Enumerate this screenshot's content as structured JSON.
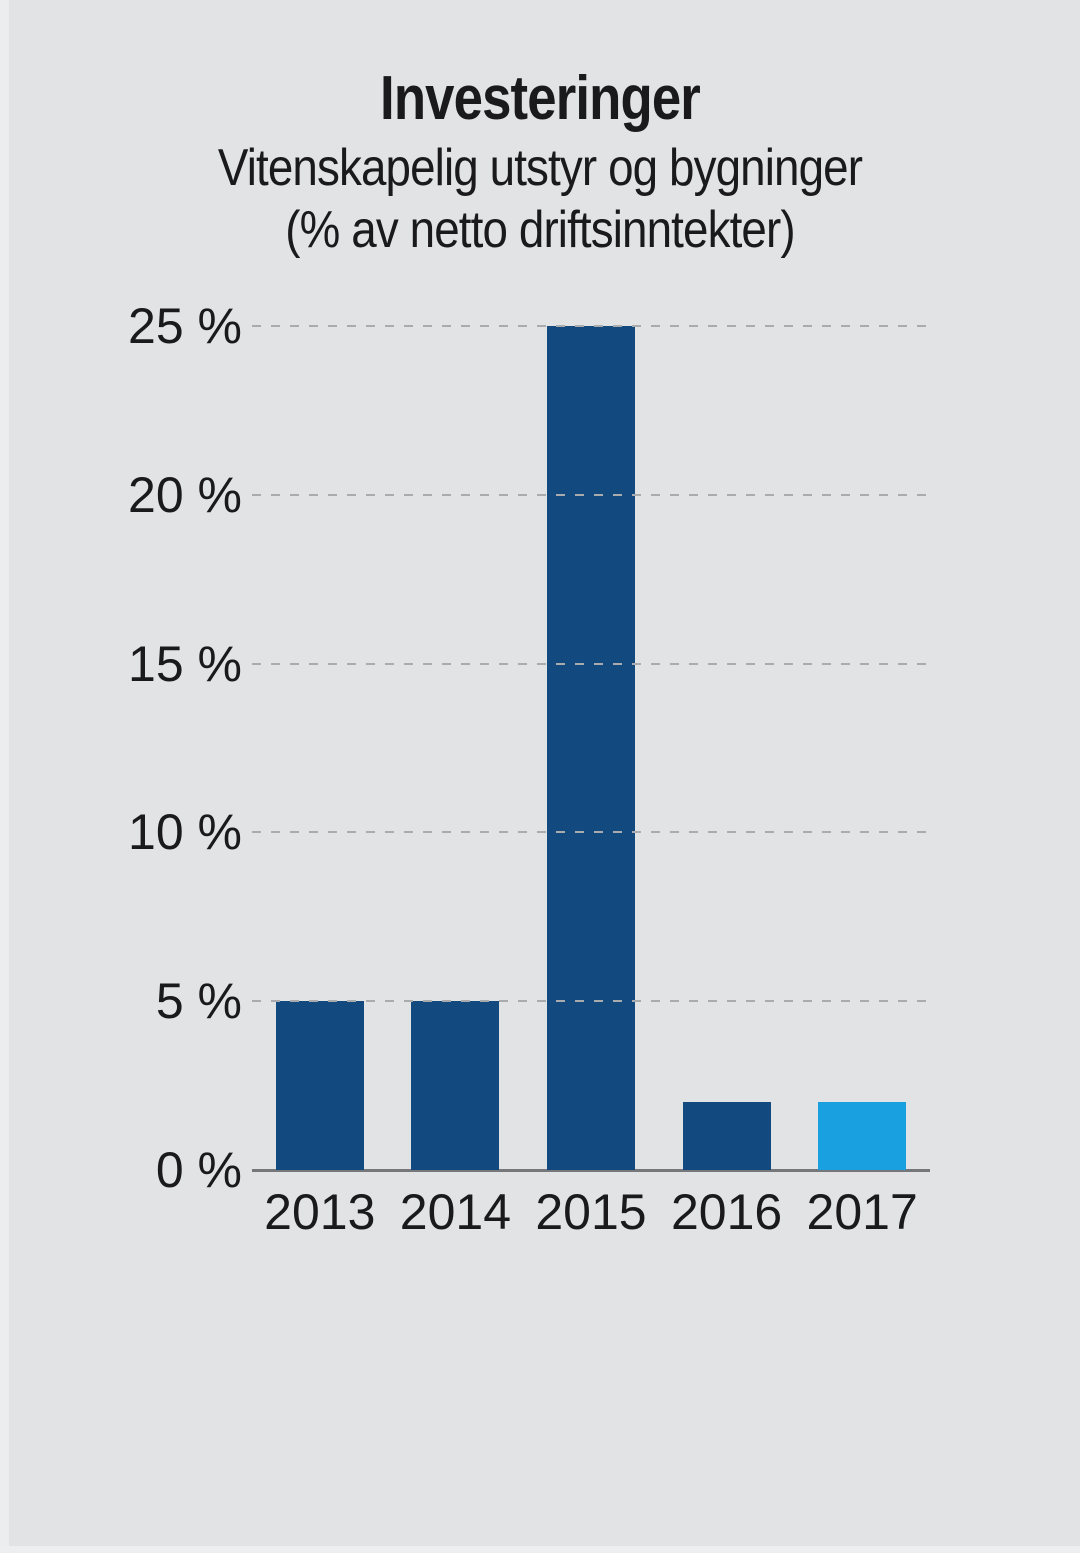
{
  "page": {
    "background": "#e2e3e5"
  },
  "header": {
    "title": "Investeringer",
    "subtitle_line1": "Vitenskapelig utstyr og bygninger",
    "subtitle_line2": "(% av netto driftsinntekter)"
  },
  "chart_data": {
    "type": "bar",
    "title": "Investeringer",
    "subtitle": "Vitenskapelig utstyr og bygninger (% av netto driftsinntekter)",
    "categories": [
      "2013",
      "2014",
      "2015",
      "2016",
      "2017"
    ],
    "values": [
      5,
      5,
      25,
      2,
      2
    ],
    "bar_colors": [
      "#124a80",
      "#124a80",
      "#124a80",
      "#124a80",
      "#18a0e1"
    ],
    "xlabel": "",
    "ylabel": "",
    "ylim": [
      0,
      25
    ],
    "ytick_step": 5,
    "yticks": [
      0,
      5,
      10,
      15,
      20,
      25
    ],
    "ytick_labels": [
      "0 %",
      "5 %",
      "10 %",
      "15 %",
      "20 %",
      "25 %"
    ],
    "grid": "horizontal-dashed",
    "legend": "none",
    "colors": {
      "bar_default": "#124a80",
      "bar_highlight": "#18a0e1",
      "gridline": "#aaabad",
      "axis": "#76777a",
      "text": "#1a1a1c",
      "background": "#e2e3e5"
    }
  }
}
